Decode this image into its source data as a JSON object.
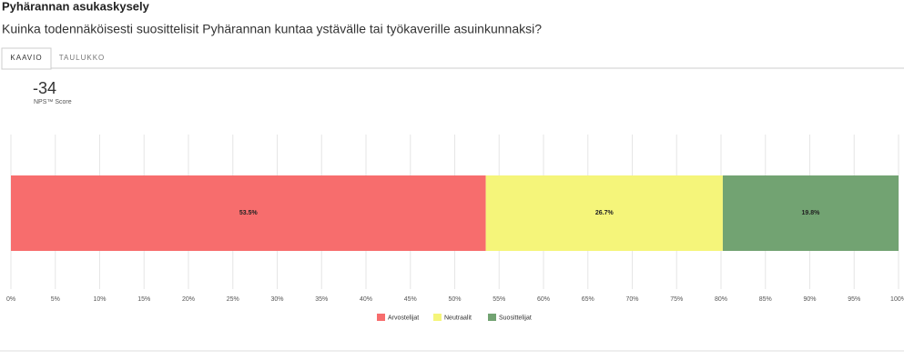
{
  "header": {
    "title": "Pyhärannan asukaskysely",
    "question": "Kuinka todennäköisesti suosittelisit Pyhärannan kuntaa ystävälle tai työkaverille asuinkunnaksi?"
  },
  "tabs": [
    "KAAVIO",
    "TAULUKKO"
  ],
  "score": {
    "value": -34,
    "label": "NPS™ Score"
  },
  "chart_data": {
    "type": "stacked-bar-horizontal",
    "series": [
      {
        "name": "Arvostelijat",
        "color": "#f76d6d",
        "values": [
          53.5
        ],
        "value_labels": [
          "53.5%"
        ]
      },
      {
        "name": "Neutraalit",
        "color": "#f5f57a",
        "values": [
          26.7
        ],
        "value_labels": [
          "26.7%"
        ]
      },
      {
        "name": "Suosittelijat",
        "color": "#72a372",
        "values": [
          19.8
        ],
        "value_labels": [
          "19.8%"
        ]
      }
    ],
    "xlim": [
      0,
      100
    ],
    "xticks": [
      {
        "value": 0,
        "label": "0%"
      },
      {
        "value": 5,
        "label": "5%"
      },
      {
        "value": 10,
        "label": "10%"
      },
      {
        "value": 15,
        "label": "15%"
      },
      {
        "value": 20,
        "label": "20%"
      },
      {
        "value": 25,
        "label": "25%"
      },
      {
        "value": 30,
        "label": "30%"
      },
      {
        "value": 35,
        "label": "35%"
      },
      {
        "value": 40,
        "label": "40%"
      },
      {
        "value": 45,
        "label": "45%"
      },
      {
        "value": 50,
        "label": "50%"
      },
      {
        "value": 55,
        "label": "55%"
      },
      {
        "value": 60,
        "label": "60%"
      },
      {
        "value": 65,
        "label": "65%"
      },
      {
        "value": 70,
        "label": "70%"
      },
      {
        "value": 75,
        "label": "75%"
      },
      {
        "value": 80,
        "label": "80%"
      },
      {
        "value": 85,
        "label": "85%"
      },
      {
        "value": 90,
        "label": "90%"
      },
      {
        "value": 95,
        "label": "95%"
      },
      {
        "value": 100,
        "label": "100%"
      }
    ],
    "grid": true
  }
}
